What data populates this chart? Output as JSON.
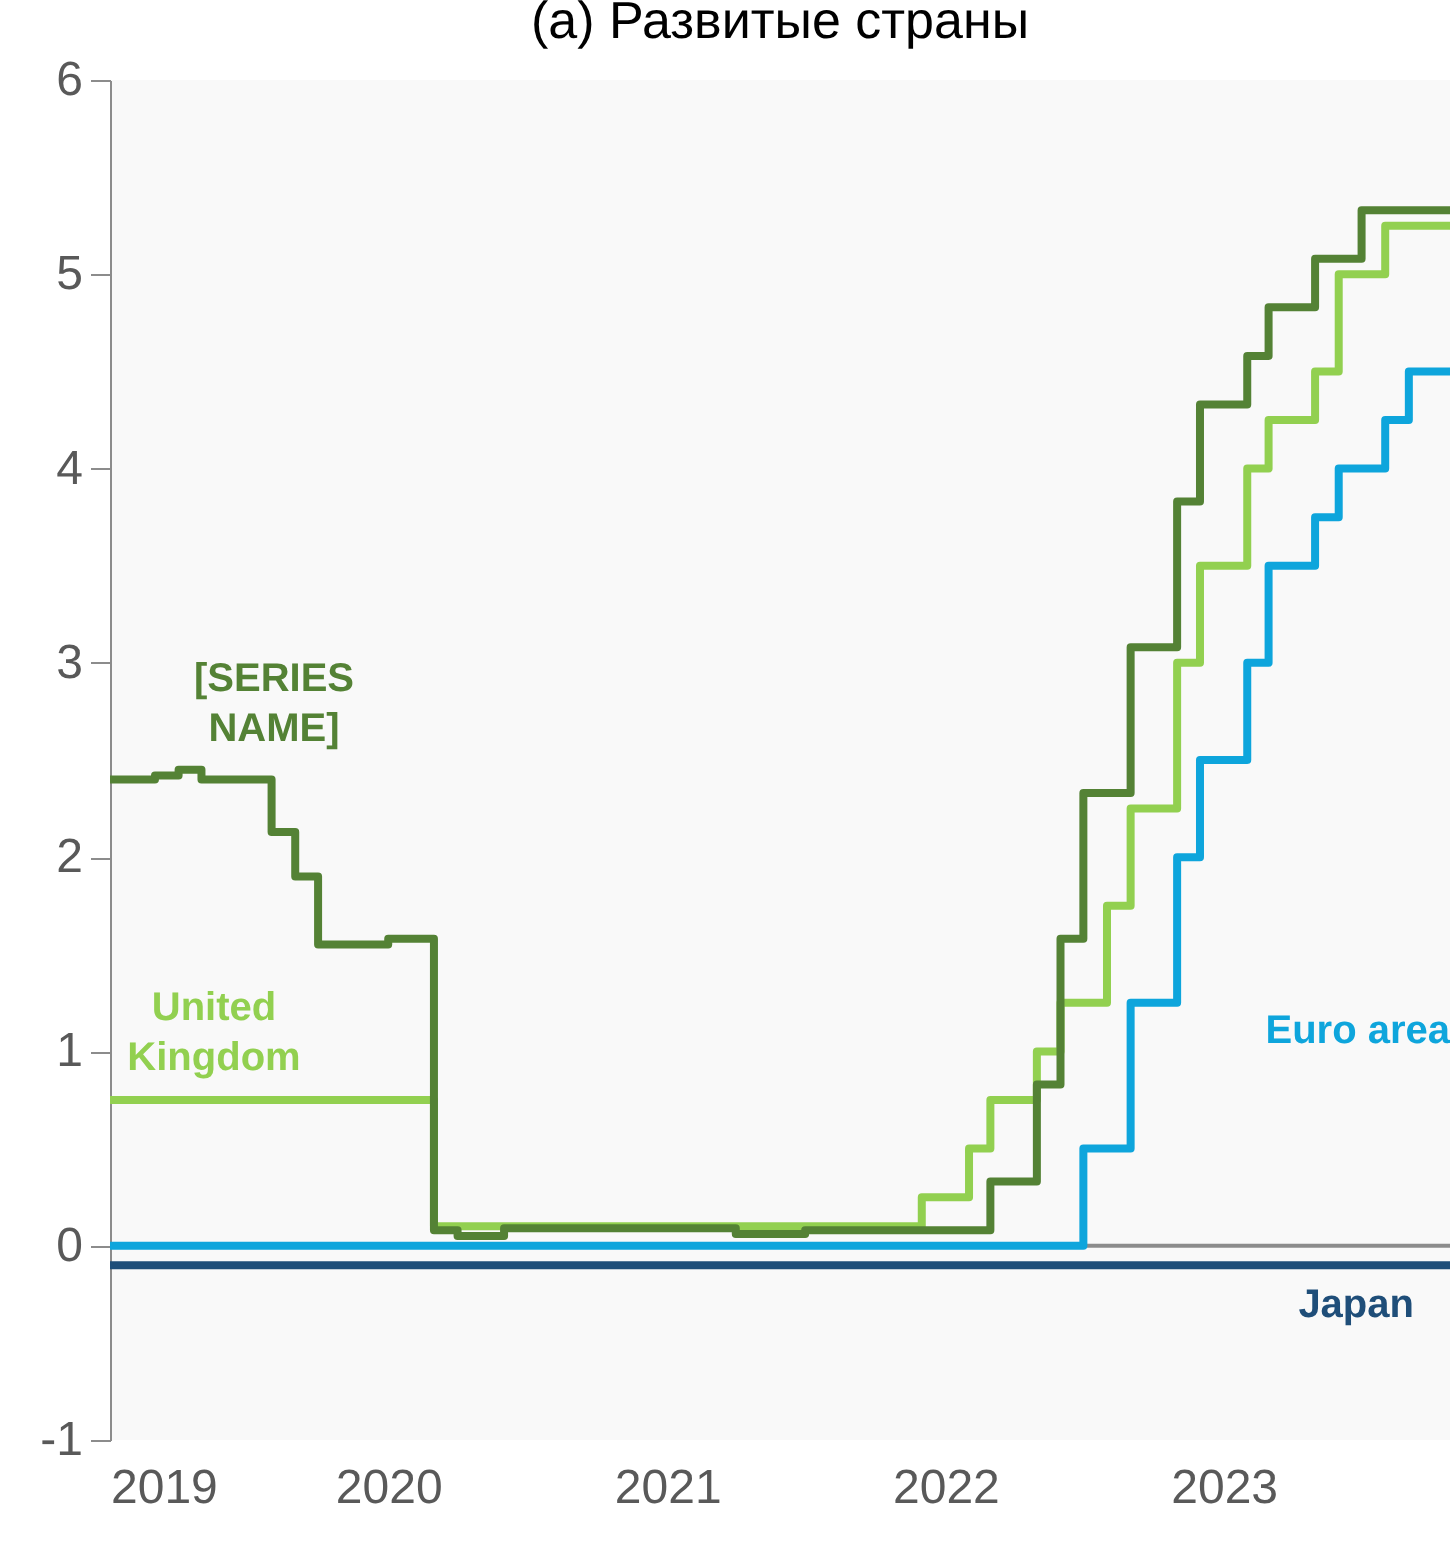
{
  "chart_data": {
    "type": "step",
    "title": "(a) Развитые страны",
    "xlim": [
      "2019-01-01",
      "2023-10-25"
    ],
    "xticks": [
      {
        "value": "2019-01-01",
        "label": "2019"
      },
      {
        "value": "2020-01-01",
        "label": "2020"
      },
      {
        "value": "2021-01-01",
        "label": "2021"
      },
      {
        "value": "2022-01-01",
        "label": "2022"
      },
      {
        "value": "2023-01-01",
        "label": "2023"
      }
    ],
    "ylim": [
      -1,
      6
    ],
    "yticks": [
      -1,
      0,
      1,
      2,
      3,
      4,
      5,
      6
    ],
    "grid": false,
    "legend": false,
    "ref_lines": [
      {
        "axis": "y",
        "value": 0,
        "color": "#8c8c8c"
      }
    ],
    "series": [
      {
        "name": "[SERIES NAME]",
        "color": "#548235",
        "x": [
          "2019-01",
          "2019-03",
          "2019-04",
          "2019-05",
          "2019-08",
          "2019-09",
          "2019-10",
          "2020-01",
          "2020-03",
          "2020-04",
          "2020-06",
          "2021-04",
          "2021-07",
          "2022-03",
          "2022-05",
          "2022-06",
          "2022-07",
          "2022-09",
          "2022-11",
          "2022-12",
          "2023-02",
          "2023-03",
          "2023-05",
          "2023-07",
          "2023-10-25"
        ],
        "values": [
          2.4,
          2.42,
          2.45,
          2.4,
          2.13,
          1.9,
          1.55,
          1.58,
          0.08,
          0.05,
          0.09,
          0.06,
          0.08,
          0.33,
          0.83,
          1.58,
          2.33,
          3.08,
          3.83,
          4.33,
          4.58,
          4.83,
          5.08,
          5.33,
          5.33
        ]
      },
      {
        "name": "United Kingdom",
        "color": "#92d050",
        "x": [
          "2019-01",
          "2020-03",
          "2021-12",
          "2022-02",
          "2022-03",
          "2022-05",
          "2022-06",
          "2022-08",
          "2022-09",
          "2022-11",
          "2022-12",
          "2023-02",
          "2023-03",
          "2023-05",
          "2023-06",
          "2023-08",
          "2023-10-25"
        ],
        "values": [
          0.75,
          0.1,
          0.25,
          0.5,
          0.75,
          1.0,
          1.25,
          1.75,
          2.25,
          3.0,
          3.5,
          4.0,
          4.25,
          4.5,
          5.0,
          5.25,
          5.25
        ]
      },
      {
        "name": "Euro area",
        "color": "#0ea5dc",
        "x": [
          "2019-01",
          "2022-07",
          "2022-09",
          "2022-11",
          "2022-12",
          "2023-02",
          "2023-03",
          "2023-05",
          "2023-06",
          "2023-08",
          "2023-09",
          "2023-10-25"
        ],
        "values": [
          0,
          0.5,
          1.25,
          2.0,
          2.5,
          3.0,
          3.5,
          3.75,
          4.0,
          4.25,
          4.5,
          4.5
        ]
      },
      {
        "name": "Japan",
        "color": "#1f4e79",
        "x": [
          "2019-01",
          "2023-10-25"
        ],
        "values": [
          -0.1,
          -0.1
        ]
      }
    ]
  }
}
